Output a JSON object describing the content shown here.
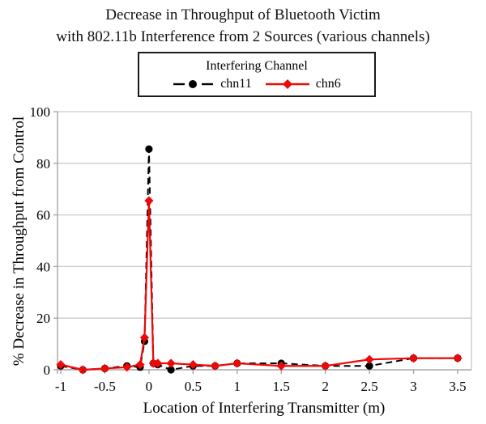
{
  "title": {
    "line1": "Decrease in Throughput of Bluetooth Victim",
    "line2": "with 802.11b Interference from 2 Sources (various channels)"
  },
  "legend": {
    "title": "Interfering Channel",
    "entries": [
      {
        "label": "chn11",
        "color": "#000000",
        "line_style": "dashed",
        "marker": "circle"
      },
      {
        "label": "chn6",
        "color": "#ee0808",
        "line_style": "solid",
        "marker": "diamond"
      }
    ]
  },
  "chart_data": {
    "type": "line",
    "title": "Decrease in Throughput of Bluetooth Victim with 802.11b Interference from 2 Sources (various channels)",
    "xlabel": "Location of Interfering Transmitter (m)",
    "ylabel": "% Decrease in Throughput from Control",
    "xlim": [
      -1,
      3.5
    ],
    "ylim": [
      0,
      100
    ],
    "grid": true,
    "legend_position": "top",
    "x_ticks": [
      -1,
      -0.5,
      0,
      0.5,
      1,
      1.5,
      2,
      2.5,
      3,
      3.5
    ],
    "x_tick_labels": [
      "-1",
      "-0.5",
      "0",
      "0.5",
      "1",
      "1.5",
      "2",
      "2.5",
      "3",
      "3.5"
    ],
    "y_ticks": [
      0,
      20,
      40,
      60,
      80,
      100
    ],
    "y_tick_labels": [
      "0",
      "20",
      "40",
      "60",
      "80",
      "100"
    ],
    "x": [
      -1,
      -0.75,
      -0.5,
      -0.25,
      -0.1,
      -0.05,
      0,
      0.05,
      0.1,
      0.25,
      0.5,
      0.75,
      1,
      1.5,
      2,
      2.5,
      3,
      3.5
    ],
    "series": [
      {
        "name": "chn11",
        "values": [
          1.5,
          0,
          0.5,
          1.5,
          1,
          11,
          85.5,
          2.5,
          2,
          0,
          1.5,
          1.5,
          2.5,
          2.5,
          1.5,
          1.5,
          4.5,
          4.5
        ]
      },
      {
        "name": "chn6",
        "values": [
          2,
          0,
          0.5,
          1,
          2,
          12.5,
          65.5,
          2.5,
          2.5,
          2.5,
          2,
          1.5,
          2.5,
          1.5,
          1.5,
          4,
          4.5,
          4.5
        ]
      }
    ]
  },
  "colors": {
    "chn11": "#000000",
    "chn6": "#ee0808",
    "gridline": "#c9c9c9",
    "axis": "#a6a6a6",
    "text": "#000000",
    "background": "#ffffff"
  }
}
